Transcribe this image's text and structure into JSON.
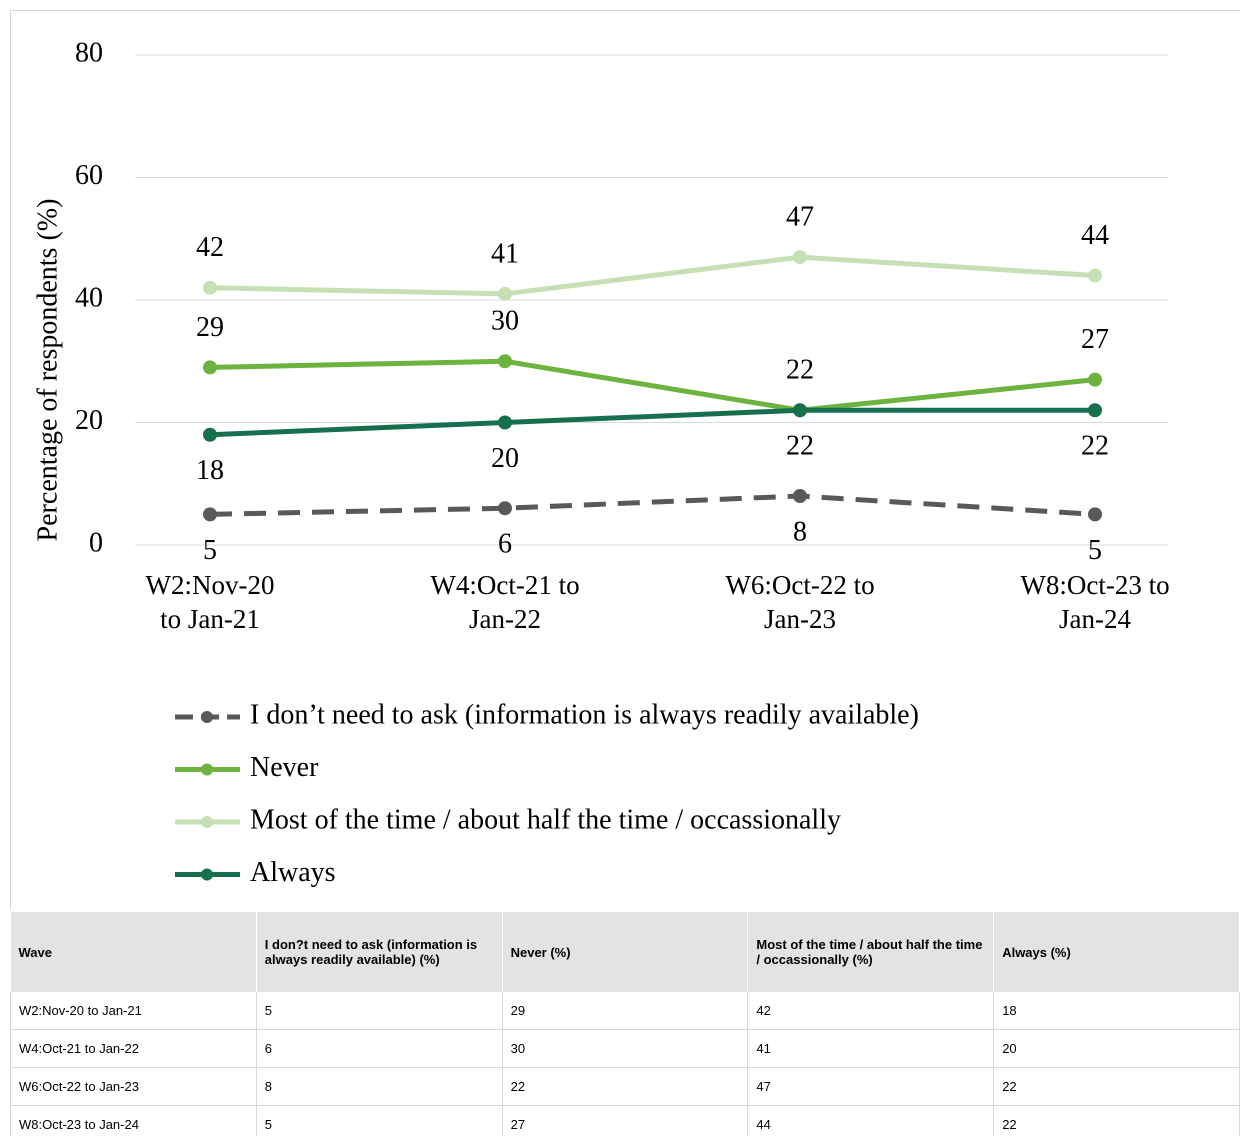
{
  "chart_data": {
    "type": "line",
    "y_label": "Percentage of respondents (%)",
    "categories": [
      "W2:Nov-20 to Jan-21",
      "W4:Oct-21 to Jan-22",
      "W6:Oct-22 to Jan-23",
      "W8:Oct-23 to Jan-24"
    ],
    "series": [
      {
        "name": "I don’t need to ask (information is always readily available)",
        "color": "#595959",
        "dashed": true,
        "values": [
          5,
          6,
          8,
          5
        ]
      },
      {
        "name": "Never",
        "color": "#6db33f",
        "dashed": false,
        "values": [
          29,
          30,
          22,
          27
        ]
      },
      {
        "name": "Most of the time / about half the time / occassionally",
        "color": "#c5e0b4",
        "dashed": false,
        "values": [
          42,
          41,
          47,
          44
        ]
      },
      {
        "name": "Always",
        "color": "#17704d",
        "dashed": false,
        "values": [
          18,
          20,
          22,
          22
        ]
      }
    ],
    "ylim": [
      0,
      80
    ],
    "yticks": [
      0,
      20,
      40,
      60,
      80
    ],
    "grid": true,
    "legend": "bottom"
  },
  "table": {
    "header": [
      "Wave",
      "I don?t need to ask (information is always readily available) (%)",
      "Never (%)",
      "Most of the time / about half the time / occassionally (%)",
      "Always (%)"
    ],
    "rows": [
      [
        "W2:Nov-20 to Jan-21",
        5,
        29,
        42,
        18
      ],
      [
        "W4:Oct-21 to Jan-22",
        6,
        30,
        41,
        20
      ],
      [
        "W6:Oct-22 to Jan-23",
        8,
        22,
        47,
        22
      ],
      [
        "W8:Oct-23 to Jan-24",
        5,
        27,
        44,
        22
      ]
    ]
  }
}
